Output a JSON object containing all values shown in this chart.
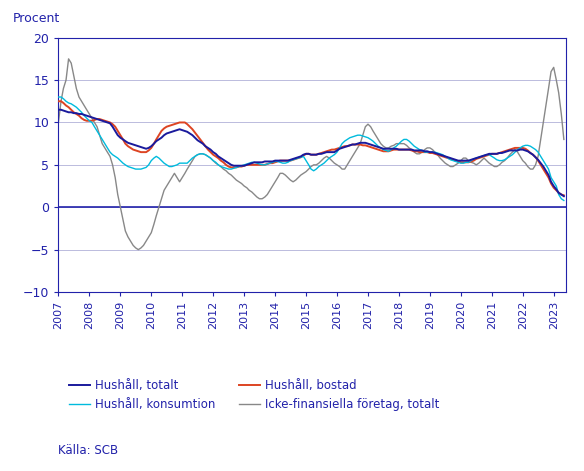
{
  "ylabel": "Procent",
  "ylim": [
    -10,
    20
  ],
  "yticks": [
    -10,
    -5,
    0,
    5,
    10,
    15,
    20
  ],
  "source": "Källa: SCB",
  "line_colors": {
    "hushall_totalt": "#1a1a9c",
    "hushall_konsumtion": "#00bbdd",
    "hushall_bostad": "#dd4422",
    "icke_finansiella": "#888888"
  },
  "line_widths": {
    "hushall_totalt": 1.4,
    "hushall_konsumtion": 1.0,
    "hushall_bostad": 1.4,
    "icke_finansiella": 1.0
  },
  "legend_labels": [
    "Hushåll, totalt",
    "Hushåll, konsumtion",
    "Hushåll, bostad",
    "Icke-finansiella företag, totalt"
  ],
  "axis_color": "#2222aa",
  "tick_color": "#2222aa",
  "label_color": "#2222aa",
  "grid_color": "#bbbbdd",
  "hushall_totalt_values": [
    11.5,
    11.5,
    11.4,
    11.3,
    11.2,
    11.2,
    11.1,
    11.1,
    11.0,
    11.0,
    10.9,
    10.8,
    10.7,
    10.6,
    10.5,
    10.4,
    10.3,
    10.2,
    10.1,
    10.0,
    9.9,
    9.5,
    9.0,
    8.5,
    8.2,
    8.0,
    7.8,
    7.6,
    7.5,
    7.4,
    7.3,
    7.2,
    7.1,
    7.0,
    6.9,
    7.0,
    7.2,
    7.5,
    7.8,
    8.0,
    8.2,
    8.5,
    8.7,
    8.8,
    8.9,
    9.0,
    9.1,
    9.2,
    9.1,
    9.0,
    8.9,
    8.7,
    8.5,
    8.2,
    7.9,
    7.7,
    7.5,
    7.2,
    7.0,
    6.8,
    6.5,
    6.3,
    6.0,
    5.8,
    5.6,
    5.4,
    5.2,
    5.0,
    4.9,
    4.9,
    4.9,
    4.9,
    4.9,
    5.0,
    5.1,
    5.2,
    5.3,
    5.3,
    5.3,
    5.3,
    5.4,
    5.4,
    5.4,
    5.4,
    5.5,
    5.5,
    5.5,
    5.5,
    5.5,
    5.5,
    5.6,
    5.7,
    5.8,
    5.9,
    6.0,
    6.2,
    6.3,
    6.3,
    6.2,
    6.2,
    6.2,
    6.3,
    6.3,
    6.4,
    6.5,
    6.5,
    6.5,
    6.5,
    6.7,
    6.9,
    7.0,
    7.1,
    7.2,
    7.3,
    7.4,
    7.4,
    7.5,
    7.6,
    7.6,
    7.6,
    7.5,
    7.4,
    7.3,
    7.2,
    7.1,
    7.0,
    6.9,
    6.9,
    6.9,
    6.9,
    6.9,
    6.9,
    6.8,
    6.8,
    6.8,
    6.8,
    6.8,
    6.8,
    6.7,
    6.7,
    6.7,
    6.7,
    6.6,
    6.6,
    6.5,
    6.5,
    6.4,
    6.3,
    6.2,
    6.1,
    6.0,
    5.9,
    5.8,
    5.7,
    5.6,
    5.5,
    5.5,
    5.5,
    5.5,
    5.5,
    5.6,
    5.7,
    5.8,
    5.9,
    6.0,
    6.1,
    6.2,
    6.3,
    6.3,
    6.3,
    6.3,
    6.4,
    6.4,
    6.5,
    6.6,
    6.7,
    6.7,
    6.7,
    6.7,
    6.8,
    6.8,
    6.7,
    6.6,
    6.4,
    6.2,
    5.9,
    5.6,
    5.2,
    4.8,
    4.3,
    3.8,
    3.0,
    2.5,
    2.1,
    1.7,
    1.5,
    1.3
  ],
  "hushall_konsumtion_values": [
    13.0,
    13.0,
    12.8,
    12.5,
    12.3,
    12.2,
    12.0,
    11.8,
    11.5,
    11.2,
    10.8,
    10.5,
    10.2,
    10.0,
    9.5,
    9.0,
    8.5,
    8.0,
    7.5,
    7.0,
    6.5,
    6.2,
    6.0,
    5.8,
    5.5,
    5.2,
    5.0,
    4.8,
    4.7,
    4.6,
    4.5,
    4.5,
    4.5,
    4.6,
    4.7,
    5.0,
    5.5,
    5.8,
    6.0,
    5.8,
    5.5,
    5.2,
    5.0,
    4.8,
    4.8,
    4.9,
    5.0,
    5.2,
    5.2,
    5.2,
    5.2,
    5.5,
    5.8,
    6.0,
    6.2,
    6.3,
    6.3,
    6.2,
    6.0,
    5.8,
    5.5,
    5.3,
    5.0,
    4.8,
    4.7,
    4.6,
    4.5,
    4.5,
    4.6,
    4.7,
    4.8,
    4.9,
    5.0,
    5.1,
    5.2,
    5.3,
    5.3,
    5.2,
    5.1,
    5.0,
    5.0,
    5.1,
    5.2,
    5.3,
    5.4,
    5.4,
    5.3,
    5.2,
    5.2,
    5.3,
    5.5,
    5.6,
    5.7,
    5.8,
    5.9,
    6.0,
    5.5,
    5.0,
    4.5,
    4.3,
    4.5,
    4.8,
    5.0,
    5.2,
    5.5,
    5.8,
    6.0,
    6.2,
    6.5,
    7.0,
    7.5,
    7.8,
    8.0,
    8.2,
    8.3,
    8.4,
    8.5,
    8.5,
    8.4,
    8.3,
    8.2,
    8.0,
    7.8,
    7.5,
    7.2,
    7.0,
    6.8,
    6.7,
    6.6,
    6.8,
    7.0,
    7.2,
    7.5,
    7.8,
    8.0,
    8.0,
    7.8,
    7.5,
    7.2,
    7.0,
    6.8,
    6.7,
    6.5,
    6.5,
    6.5,
    6.5,
    6.5,
    6.4,
    6.3,
    6.2,
    6.0,
    5.8,
    5.6,
    5.5,
    5.4,
    5.3,
    5.2,
    5.2,
    5.3,
    5.3,
    5.5,
    5.7,
    5.8,
    5.9,
    6.0,
    6.1,
    6.2,
    6.2,
    6.0,
    5.8,
    5.6,
    5.5,
    5.5,
    5.6,
    5.8,
    6.0,
    6.2,
    6.5,
    6.8,
    7.0,
    7.2,
    7.3,
    7.3,
    7.2,
    7.0,
    6.8,
    6.5,
    6.0,
    5.5,
    5.0,
    4.5,
    3.5,
    3.0,
    2.5,
    1.5,
    1.0,
    0.8
  ],
  "hushall_bostad_values": [
    12.5,
    12.5,
    12.3,
    12.0,
    11.8,
    11.5,
    11.2,
    11.0,
    10.8,
    10.5,
    10.3,
    10.2,
    10.2,
    10.2,
    10.3,
    10.4,
    10.4,
    10.3,
    10.2,
    10.1,
    10.0,
    9.8,
    9.5,
    9.0,
    8.5,
    8.0,
    7.5,
    7.2,
    7.0,
    6.8,
    6.7,
    6.6,
    6.5,
    6.5,
    6.5,
    6.7,
    7.0,
    7.5,
    8.0,
    8.5,
    9.0,
    9.3,
    9.5,
    9.6,
    9.7,
    9.8,
    9.9,
    10.0,
    10.0,
    10.0,
    9.8,
    9.5,
    9.2,
    8.8,
    8.4,
    8.0,
    7.6,
    7.2,
    6.8,
    6.5,
    6.2,
    6.0,
    5.8,
    5.5,
    5.3,
    5.0,
    4.8,
    4.7,
    4.7,
    4.7,
    4.8,
    4.8,
    4.9,
    5.0,
    5.0,
    5.0,
    5.0,
    5.0,
    5.0,
    5.0,
    5.0,
    5.1,
    5.2,
    5.2,
    5.3,
    5.4,
    5.5,
    5.5,
    5.5,
    5.5,
    5.5,
    5.6,
    5.7,
    5.8,
    5.9,
    6.1,
    6.3,
    6.3,
    6.2,
    6.2,
    6.2,
    6.3,
    6.4,
    6.5,
    6.6,
    6.7,
    6.8,
    6.8,
    6.9,
    7.0,
    7.1,
    7.2,
    7.2,
    7.3,
    7.4,
    7.4,
    7.4,
    7.4,
    7.3,
    7.3,
    7.2,
    7.1,
    7.0,
    6.9,
    6.8,
    6.7,
    6.6,
    6.6,
    6.6,
    6.7,
    6.8,
    6.8,
    6.8,
    6.8,
    6.8,
    6.8,
    6.8,
    6.7,
    6.6,
    6.6,
    6.5,
    6.5,
    6.5,
    6.5,
    6.4,
    6.4,
    6.3,
    6.2,
    6.1,
    6.0,
    5.9,
    5.8,
    5.7,
    5.6,
    5.5,
    5.4,
    5.3,
    5.3,
    5.3,
    5.3,
    5.4,
    5.5,
    5.7,
    5.8,
    5.9,
    6.0,
    6.1,
    6.2,
    6.3,
    6.3,
    6.3,
    6.4,
    6.5,
    6.6,
    6.7,
    6.8,
    6.9,
    7.0,
    7.0,
    7.0,
    7.0,
    6.9,
    6.7,
    6.4,
    6.2,
    5.9,
    5.5,
    5.0,
    4.5,
    4.0,
    3.5,
    2.8,
    2.3,
    2.0,
    1.7,
    1.5,
    1.4
  ],
  "icke_finansiella_values": [
    10.0,
    12.5,
    14.0,
    15.0,
    17.5,
    17.0,
    15.5,
    14.0,
    13.0,
    12.5,
    12.0,
    11.5,
    11.0,
    10.5,
    10.0,
    9.5,
    8.5,
    7.5,
    7.0,
    6.5,
    6.0,
    5.0,
    3.5,
    1.5,
    0.0,
    -1.5,
    -2.8,
    -3.5,
    -4.0,
    -4.5,
    -4.8,
    -5.0,
    -4.8,
    -4.5,
    -4.0,
    -3.5,
    -3.0,
    -2.0,
    -1.0,
    0.0,
    1.0,
    2.0,
    2.5,
    3.0,
    3.5,
    4.0,
    3.5,
    3.0,
    3.5,
    4.0,
    4.5,
    5.0,
    5.5,
    6.0,
    6.2,
    6.3,
    6.3,
    6.2,
    6.0,
    5.8,
    5.5,
    5.2,
    5.0,
    4.8,
    4.5,
    4.3,
    4.0,
    3.8,
    3.5,
    3.2,
    3.0,
    2.8,
    2.5,
    2.3,
    2.0,
    1.8,
    1.5,
    1.2,
    1.0,
    1.0,
    1.2,
    1.5,
    2.0,
    2.5,
    3.0,
    3.5,
    4.0,
    4.0,
    3.8,
    3.5,
    3.2,
    3.0,
    3.2,
    3.5,
    3.8,
    4.0,
    4.2,
    4.5,
    4.8,
    5.0,
    5.0,
    5.2,
    5.5,
    5.8,
    6.0,
    5.8,
    5.5,
    5.2,
    5.0,
    4.8,
    4.5,
    4.5,
    5.0,
    5.5,
    6.0,
    6.5,
    7.0,
    7.5,
    8.5,
    9.5,
    9.8,
    9.5,
    9.0,
    8.5,
    8.0,
    7.5,
    7.2,
    7.0,
    7.0,
    7.2,
    7.3,
    7.5,
    7.5,
    7.5,
    7.5,
    7.3,
    7.0,
    6.8,
    6.5,
    6.3,
    6.3,
    6.5,
    6.8,
    7.0,
    7.0,
    6.8,
    6.5,
    6.2,
    5.8,
    5.5,
    5.2,
    5.0,
    4.8,
    4.8,
    5.0,
    5.2,
    5.5,
    5.8,
    5.8,
    5.5,
    5.3,
    5.2,
    5.0,
    5.2,
    5.5,
    5.8,
    5.5,
    5.2,
    5.0,
    4.8,
    4.8,
    5.0,
    5.3,
    5.5,
    5.8,
    6.2,
    6.5,
    6.8,
    6.5,
    6.0,
    5.5,
    5.2,
    4.8,
    4.5,
    4.5,
    5.0,
    6.0,
    8.0,
    10.0,
    12.0,
    14.0,
    16.0,
    16.5,
    15.0,
    13.5,
    11.0,
    8.0
  ]
}
